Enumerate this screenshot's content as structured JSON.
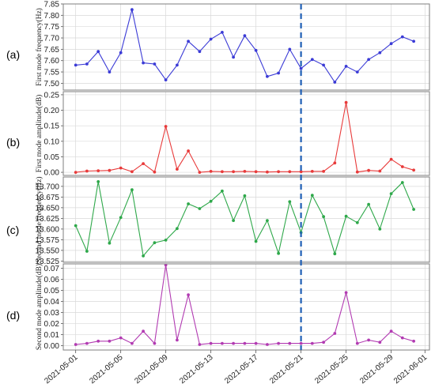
{
  "figure": {
    "panel_letters": [
      "(a)",
      "(b)",
      "(c)",
      "(d)"
    ],
    "x_tick_labels": [
      "2021-05-01",
      "2021-05-05",
      "2021-05-09",
      "2021-05-13",
      "2021-05-17",
      "2021-05-21",
      "2021-05-25",
      "2021-05-29",
      "2021-06-01"
    ],
    "event_marker_date": "2021-05-21"
  },
  "chart_data": [
    {
      "type": "line",
      "panel_letter": "(a)",
      "ylabel": "First mode frequency(Hz)",
      "ylim": [
        7.47,
        7.85
      ],
      "yticks": [
        7.5,
        7.55,
        7.6,
        7.65,
        7.7,
        7.75,
        7.8,
        7.85
      ],
      "ytick_labels": [
        "7.50",
        "7.55",
        "7.60",
        "7.65",
        "7.70",
        "7.75",
        "7.80",
        "7.85"
      ],
      "grid": true,
      "color": "#3b3bd6",
      "x": [
        "2021-05-01",
        "2021-05-02",
        "2021-05-03",
        "2021-05-04",
        "2021-05-05",
        "2021-05-06",
        "2021-05-07",
        "2021-05-08",
        "2021-05-09",
        "2021-05-10",
        "2021-05-11",
        "2021-05-12",
        "2021-05-13",
        "2021-05-14",
        "2021-05-15",
        "2021-05-16",
        "2021-05-17",
        "2021-05-18",
        "2021-05-19",
        "2021-05-20",
        "2021-05-21",
        "2021-05-22",
        "2021-05-23",
        "2021-05-24",
        "2021-05-25",
        "2021-05-26",
        "2021-05-27",
        "2021-05-28",
        "2021-05-29",
        "2021-05-30",
        "2021-05-31"
      ],
      "values": [
        7.58,
        7.585,
        7.64,
        7.55,
        7.635,
        7.825,
        7.59,
        7.585,
        7.515,
        7.58,
        7.685,
        7.64,
        7.695,
        7.725,
        7.615,
        7.71,
        7.645,
        7.53,
        7.545,
        7.65,
        7.565,
        7.605,
        7.58,
        7.505,
        7.575,
        7.55,
        7.605,
        7.635,
        7.675,
        7.705,
        7.685
      ]
    },
    {
      "type": "line",
      "panel_letter": "(b)",
      "ylabel": "First mode amplitude(dB)",
      "ylim": [
        -0.01,
        0.26
      ],
      "yticks": [
        0.0,
        0.05,
        0.1,
        0.15,
        0.2,
        0.25
      ],
      "ytick_labels": [
        "0.00",
        "0.05",
        "0.10",
        "0.15",
        "0.20",
        "0.25"
      ],
      "grid": true,
      "color": "#e83a3a",
      "x": [
        "2021-05-01",
        "2021-05-02",
        "2021-05-03",
        "2021-05-04",
        "2021-05-05",
        "2021-05-06",
        "2021-05-07",
        "2021-05-08",
        "2021-05-09",
        "2021-05-10",
        "2021-05-11",
        "2021-05-12",
        "2021-05-13",
        "2021-05-14",
        "2021-05-15",
        "2021-05-16",
        "2021-05-17",
        "2021-05-18",
        "2021-05-19",
        "2021-05-20",
        "2021-05-21",
        "2021-05-22",
        "2021-05-23",
        "2021-05-24",
        "2021-05-25",
        "2021-05-26",
        "2021-05-27",
        "2021-05-28",
        "2021-05-29",
        "2021-05-30",
        "2021-05-31"
      ],
      "values": [
        0.0,
        0.004,
        0.005,
        0.006,
        0.014,
        0.002,
        0.028,
        0.001,
        0.148,
        0.01,
        0.069,
        0.0,
        0.003,
        0.002,
        0.002,
        0.003,
        0.002,
        0.001,
        0.002,
        0.002,
        0.002,
        0.003,
        0.003,
        0.03,
        0.225,
        0.001,
        0.006,
        0.004,
        0.042,
        0.018,
        0.007
      ]
    },
    {
      "type": "line",
      "panel_letter": "(c)",
      "ylabel": "Second mode frequency(Hz)",
      "ylim": [
        13.522,
        13.722
      ],
      "yticks": [
        13.525,
        13.55,
        13.575,
        13.6,
        13.625,
        13.65,
        13.675,
        13.7
      ],
      "ytick_labels": [
        "13.525",
        "13.550",
        "13.575",
        "13.600",
        "13.625",
        "13.650",
        "13.675",
        "13.700"
      ],
      "grid": true,
      "color": "#2ea84a",
      "x": [
        "2021-05-01",
        "2021-05-02",
        "2021-05-03",
        "2021-05-04",
        "2021-05-05",
        "2021-05-06",
        "2021-05-07",
        "2021-05-08",
        "2021-05-09",
        "2021-05-10",
        "2021-05-11",
        "2021-05-12",
        "2021-05-13",
        "2021-05-14",
        "2021-05-15",
        "2021-05-16",
        "2021-05-17",
        "2021-05-18",
        "2021-05-19",
        "2021-05-20",
        "2021-05-21",
        "2021-05-22",
        "2021-05-23",
        "2021-05-24",
        "2021-05-25",
        "2021-05-26",
        "2021-05-27",
        "2021-05-28",
        "2021-05-29",
        "2021-05-30",
        "2021-05-31"
      ],
      "values": [
        13.608,
        13.548,
        13.711,
        13.567,
        13.627,
        13.692,
        13.537,
        13.568,
        13.574,
        13.601,
        13.659,
        13.648,
        13.665,
        13.689,
        13.62,
        13.678,
        13.571,
        13.62,
        13.543,
        13.664,
        13.592,
        13.679,
        13.629,
        13.542,
        13.63,
        13.615,
        13.658,
        13.6,
        13.683,
        13.709,
        13.646
      ]
    },
    {
      "type": "line",
      "panel_letter": "(d)",
      "ylabel": "Second mode amplitude(dB)",
      "ylim": [
        -0.004,
        0.074
      ],
      "yticks": [
        0.0,
        0.01,
        0.02,
        0.03,
        0.04,
        0.05,
        0.06,
        0.07
      ],
      "ytick_labels": [
        "0.00",
        "0.01",
        "0.02",
        "0.03",
        "0.04",
        "0.05",
        "0.06",
        "0.07"
      ],
      "grid": true,
      "color": "#b23bb2",
      "x": [
        "2021-05-01",
        "2021-05-02",
        "2021-05-03",
        "2021-05-04",
        "2021-05-05",
        "2021-05-06",
        "2021-05-07",
        "2021-05-08",
        "2021-05-09",
        "2021-05-10",
        "2021-05-11",
        "2021-05-12",
        "2021-05-13",
        "2021-05-14",
        "2021-05-15",
        "2021-05-16",
        "2021-05-17",
        "2021-05-18",
        "2021-05-19",
        "2021-05-20",
        "2021-05-21",
        "2021-05-22",
        "2021-05-23",
        "2021-05-24",
        "2021-05-25",
        "2021-05-26",
        "2021-05-27",
        "2021-05-28",
        "2021-05-29",
        "2021-05-30",
        "2021-05-31"
      ],
      "values": [
        0.001,
        0.002,
        0.004,
        0.004,
        0.007,
        0.002,
        0.013,
        0.002,
        0.073,
        0.005,
        0.046,
        0.001,
        0.002,
        0.002,
        0.002,
        0.002,
        0.002,
        0.001,
        0.002,
        0.002,
        0.002,
        0.002,
        0.003,
        0.011,
        0.048,
        0.002,
        0.005,
        0.003,
        0.013,
        0.007,
        0.004
      ]
    }
  ],
  "colors": {
    "event_marker": "#1f5fb5",
    "frame": "#7f7f7f",
    "grid": "#d9d9d9"
  }
}
